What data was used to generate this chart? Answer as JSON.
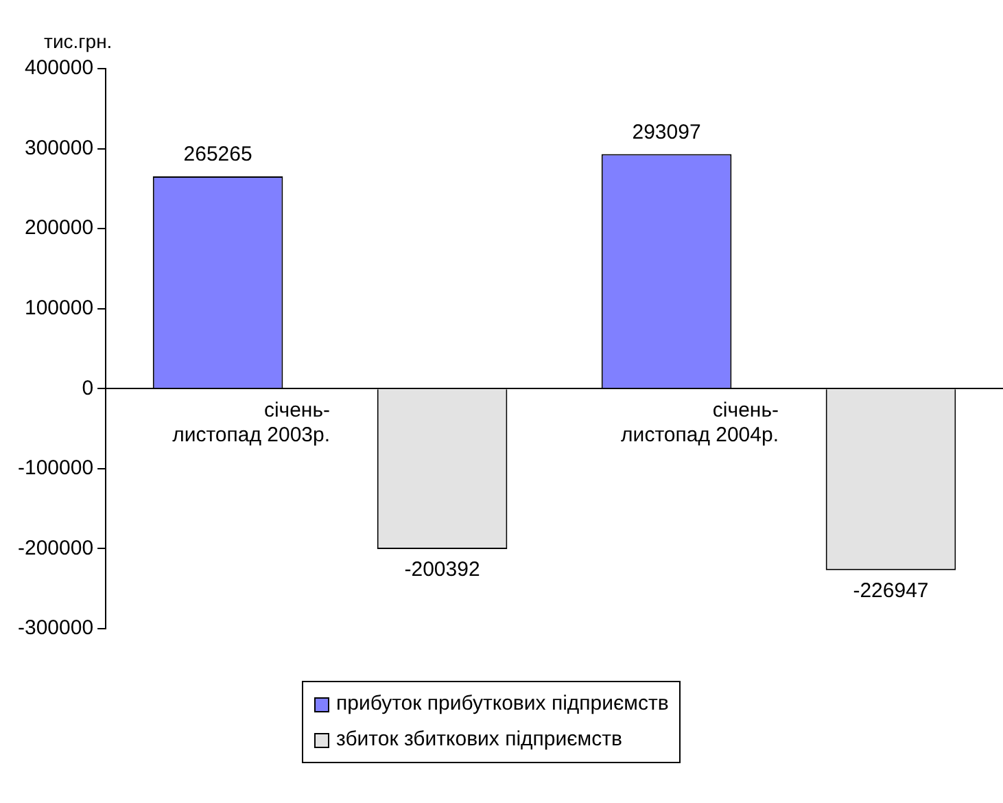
{
  "chart_data": {
    "type": "bar",
    "ylabel": "тис.грн.",
    "categories": [
      "січень-листопад 2003р.",
      "січень-листопад 2004р."
    ],
    "series": [
      {
        "name": "прибуток прибуткових підприємств",
        "color": "#8080ff",
        "values": [
          265265,
          293097
        ]
      },
      {
        "name": "збиток збиткових підприємств",
        "color": "#e3e3e3",
        "values": [
          -200392,
          -226947
        ]
      }
    ],
    "ylim": [
      -300000,
      400000
    ],
    "yticks": [
      -300000,
      -200000,
      -100000,
      0,
      100000,
      200000,
      300000,
      400000
    ],
    "data_labels": true,
    "grid": false,
    "legend": "bottom"
  }
}
